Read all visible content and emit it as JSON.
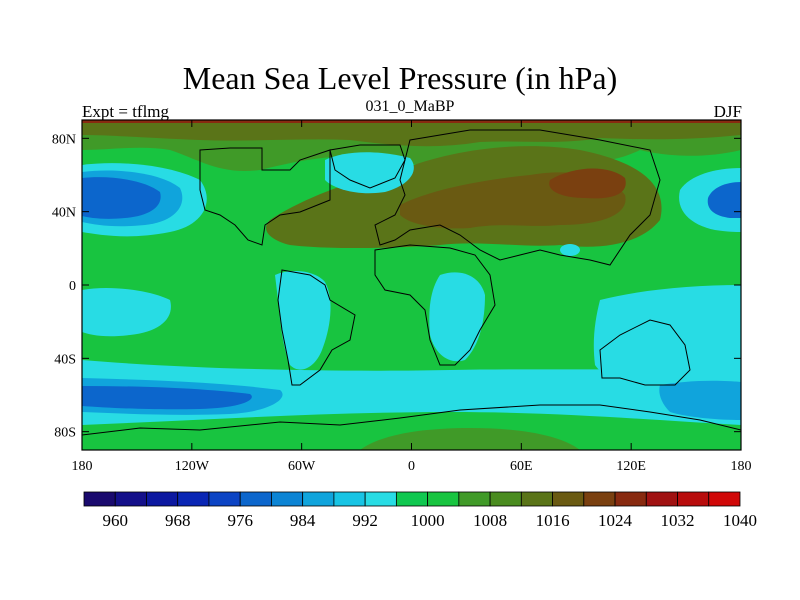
{
  "chart_data": {
    "type": "heatmap",
    "title": "Mean Sea Level Pressure (in hPa)",
    "left_label": "Expt = tflmg",
    "center_label": "031_0_MaBP",
    "right_label": "DJF",
    "units": "hPa",
    "x_ticks": [
      "180",
      "120W",
      "60W",
      "0",
      "60E",
      "120E",
      "180"
    ],
    "y_ticks": [
      "80N",
      "40N",
      "0",
      "40S",
      "80S"
    ],
    "x_range": [
      -180,
      180
    ],
    "y_range": [
      -90,
      90
    ],
    "colorbar": {
      "levels": [
        960,
        964,
        968,
        972,
        976,
        980,
        984,
        988,
        992,
        996,
        1000,
        1004,
        1008,
        1012,
        1016,
        1020,
        1024,
        1028,
        1032,
        1036,
        1040
      ],
      "labels": [
        "960",
        "968",
        "976",
        "984",
        "992",
        "1000",
        "1008",
        "1016",
        "1024",
        "1032",
        "1040"
      ],
      "colors": [
        "#1a0a6e",
        "#14108a",
        "#0c18a0",
        "#0a26b4",
        "#0c44c4",
        "#0c66cc",
        "#0c84d4",
        "#10a4dc",
        "#18c4e4",
        "#28dce4",
        "#10c850",
        "#18c440",
        "#409a28",
        "#4a8c20",
        "#5a7418",
        "#6a5a12",
        "#7a4010",
        "#882a10",
        "#a01212",
        "#b80c0c",
        "#d00808"
      ]
    },
    "pressure_regions": [
      {
        "name": "background",
        "value": 1010,
        "color": "#18c440"
      },
      {
        "name": "north-pacific-low",
        "value": 986,
        "color": "#0c66cc"
      },
      {
        "name": "north-pacific-low-outer",
        "value": 994,
        "color": "#28dce4"
      },
      {
        "name": "southern-ocean-trough",
        "value": 982,
        "color": "#0c66cc"
      },
      {
        "name": "southern-ocean-band",
        "value": 996,
        "color": "#28dce4"
      },
      {
        "name": "asian-high",
        "value": 1022,
        "color": "#6a5a12"
      },
      {
        "name": "arctic-band",
        "value": 1016,
        "color": "#5a7418"
      },
      {
        "name": "tropical-south-america",
        "value": 1002,
        "color": "#28dce4"
      },
      {
        "name": "tropical-africa",
        "value": 1002,
        "color": "#28dce4"
      },
      {
        "name": "australia-indian-ocean",
        "value": 1002,
        "color": "#28dce4"
      },
      {
        "name": "antarctic-band",
        "value": 1014,
        "color": "#409a28"
      }
    ]
  }
}
